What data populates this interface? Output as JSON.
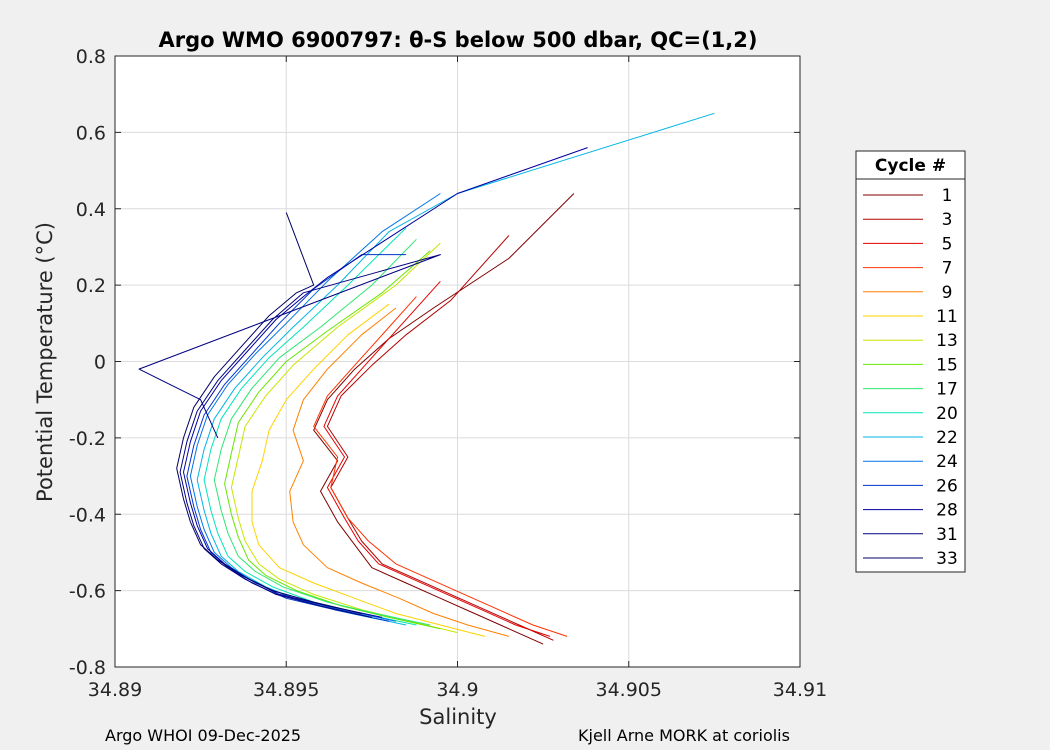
{
  "chart_data": {
    "type": "line",
    "title": "Argo WMO 6900797: θ-S below 500 dbar,  QC=(1,2)",
    "xlabel": "Salinity",
    "ylabel": "Potential Temperature (°C)",
    "xlim": [
      34.89,
      34.91
    ],
    "ylim": [
      -0.8,
      0.8
    ],
    "xticks": [
      34.89,
      34.895,
      34.9,
      34.905,
      34.91
    ],
    "xtick_labels": [
      "34.89",
      "34.895",
      "34.9",
      "34.905",
      "34.91"
    ],
    "yticks": [
      -0.8,
      -0.6,
      -0.4,
      -0.2,
      0,
      0.2,
      0.4,
      0.6,
      0.8
    ],
    "ytick_labels": [
      "-0.8",
      "-0.6",
      "-0.4",
      "-0.2",
      "0",
      "0.2",
      "0.4",
      "0.6",
      "0.8"
    ],
    "grid": true,
    "legend": {
      "title": "Cycle #",
      "position": "right"
    },
    "series": [
      {
        "name": "1",
        "color": "#800000",
        "x": [
          34.9025,
          34.9015,
          34.9005,
          34.8995,
          34.8985,
          34.8975,
          34.897,
          34.8965,
          34.896,
          34.8965,
          34.8958,
          34.8962,
          34.897,
          34.898,
          34.8993,
          34.9015,
          34.9034
        ],
        "y": [
          -0.74,
          -0.7,
          -0.66,
          -0.62,
          -0.58,
          -0.54,
          -0.48,
          -0.42,
          -0.34,
          -0.26,
          -0.18,
          -0.1,
          -0.02,
          0.06,
          0.14,
          0.27,
          0.44
        ]
      },
      {
        "name": "3",
        "color": "#b30000",
        "x": [
          34.9028,
          34.9018,
          34.9008,
          34.8998,
          34.8988,
          34.8978,
          34.8972,
          34.8968,
          34.8963,
          34.8968,
          34.8962,
          34.8966,
          34.8975,
          34.8985,
          34.8998,
          34.9015
        ],
        "y": [
          -0.73,
          -0.69,
          -0.65,
          -0.61,
          -0.57,
          -0.53,
          -0.47,
          -0.41,
          -0.33,
          -0.25,
          -0.17,
          -0.09,
          -0.01,
          0.07,
          0.16,
          0.33
        ]
      },
      {
        "name": "5",
        "color": "#e60000",
        "x": [
          34.9027,
          34.9017,
          34.9007,
          34.8997,
          34.8987,
          34.8977,
          34.8971,
          34.8967,
          34.8962,
          34.8967,
          34.8961,
          34.8965,
          34.8973,
          34.8983,
          34.8995
        ],
        "y": [
          -0.72,
          -0.69,
          -0.65,
          -0.61,
          -0.57,
          -0.53,
          -0.47,
          -0.41,
          -0.33,
          -0.25,
          -0.17,
          -0.09,
          -0.01,
          0.09,
          0.21
        ]
      },
      {
        "name": "7",
        "color": "#ff3300",
        "x": [
          34.9032,
          34.9022,
          34.9012,
          34.9002,
          34.8992,
          34.8982,
          34.8974,
          34.8968,
          34.8963,
          34.8965,
          34.8958,
          34.8962,
          34.897,
          34.8979,
          34.8988
        ],
        "y": [
          -0.72,
          -0.69,
          -0.65,
          -0.61,
          -0.57,
          -0.53,
          -0.47,
          -0.41,
          -0.33,
          -0.25,
          -0.17,
          -0.09,
          -0.01,
          0.08,
          0.17
        ]
      },
      {
        "name": "9",
        "color": "#ff8000",
        "x": [
          34.9015,
          34.9003,
          34.8993,
          34.8983,
          34.8972,
          34.8962,
          34.8955,
          34.8952,
          34.8951,
          34.8955,
          34.8952,
          34.8955,
          34.8962,
          34.8972,
          34.8982
        ],
        "y": [
          -0.72,
          -0.69,
          -0.66,
          -0.62,
          -0.58,
          -0.54,
          -0.48,
          -0.42,
          -0.34,
          -0.26,
          -0.18,
          -0.1,
          -0.02,
          0.07,
          0.14
        ]
      },
      {
        "name": "11",
        "color": "#ffd200",
        "x": [
          34.9008,
          34.8995,
          34.8982,
          34.897,
          34.8958,
          34.8948,
          34.8942,
          34.894,
          34.894,
          34.8943,
          34.8945,
          34.895,
          34.8958,
          34.8968,
          34.898
        ],
        "y": [
          -0.72,
          -0.69,
          -0.66,
          -0.62,
          -0.58,
          -0.54,
          -0.48,
          -0.42,
          -0.34,
          -0.26,
          -0.18,
          -0.1,
          -0.02,
          0.07,
          0.15
        ]
      },
      {
        "name": "13",
        "color": "#c8e600",
        "x": [
          34.9,
          34.8986,
          34.8972,
          34.8958,
          34.8948,
          34.8942,
          34.8938,
          34.8936,
          34.8934,
          34.8936,
          34.8938,
          34.8944,
          34.8952,
          34.8965,
          34.8982,
          34.8995
        ],
        "y": [
          -0.71,
          -0.68,
          -0.65,
          -0.61,
          -0.57,
          -0.53,
          -0.47,
          -0.41,
          -0.33,
          -0.25,
          -0.17,
          -0.09,
          -0.01,
          0.09,
          0.2,
          0.31
        ]
      },
      {
        "name": "15",
        "color": "#66e600",
        "x": [
          34.8995,
          34.898,
          34.8966,
          34.8953,
          34.8944,
          34.8939,
          34.8936,
          34.8934,
          34.8932,
          34.8934,
          34.8936,
          34.8942,
          34.895,
          34.8962,
          34.8978,
          34.8992
        ],
        "y": [
          -0.7,
          -0.67,
          -0.64,
          -0.6,
          -0.56,
          -0.52,
          -0.46,
          -0.4,
          -0.32,
          -0.24,
          -0.16,
          -0.08,
          0.0,
          0.08,
          0.18,
          0.29
        ]
      },
      {
        "name": "17",
        "color": "#2ee673",
        "x": [
          34.8992,
          34.8976,
          34.8962,
          34.8949,
          34.8941,
          34.8936,
          34.8933,
          34.8931,
          34.8929,
          34.8931,
          34.8934,
          34.894,
          34.8948,
          34.896,
          34.8975,
          34.8988
        ],
        "y": [
          -0.69,
          -0.66,
          -0.63,
          -0.59,
          -0.55,
          -0.51,
          -0.45,
          -0.39,
          -0.31,
          -0.23,
          -0.15,
          -0.07,
          0.01,
          0.09,
          0.2,
          0.32
        ]
      },
      {
        "name": "20",
        "color": "#00e6b8",
        "x": [
          34.8988,
          34.8972,
          34.8958,
          34.8946,
          34.8938,
          34.8933,
          34.893,
          34.8928,
          34.8926,
          34.8928,
          34.8931,
          34.8937,
          34.8945,
          34.8955,
          34.8968,
          34.8985
        ],
        "y": [
          -0.69,
          -0.66,
          -0.63,
          -0.59,
          -0.55,
          -0.51,
          -0.45,
          -0.39,
          -0.31,
          -0.23,
          -0.15,
          -0.07,
          0.01,
          0.09,
          0.2,
          0.35
        ]
      },
      {
        "name": "22",
        "color": "#00b4e6",
        "x": [
          34.8985,
          34.8969,
          34.8955,
          34.8944,
          34.8936,
          34.8931,
          34.8928,
          34.8926,
          34.8924,
          34.8926,
          34.8929,
          34.8935,
          34.8943,
          34.8952,
          34.8965,
          34.898,
          34.9,
          34.9075
        ],
        "y": [
          -0.69,
          -0.66,
          -0.63,
          -0.59,
          -0.55,
          -0.51,
          -0.45,
          -0.39,
          -0.31,
          -0.23,
          -0.15,
          -0.07,
          0.01,
          0.09,
          0.2,
          0.34,
          0.44,
          0.65
        ]
      },
      {
        "name": "24",
        "color": "#0073e6",
        "x": [
          34.8982,
          34.8966,
          34.8952,
          34.8941,
          34.8934,
          34.8929,
          34.8926,
          34.8924,
          34.8922,
          34.8924,
          34.8927,
          34.8933,
          34.8941,
          34.895,
          34.8962,
          34.8978,
          34.8995
        ],
        "y": [
          -0.68,
          -0.65,
          -0.62,
          -0.58,
          -0.54,
          -0.5,
          -0.44,
          -0.38,
          -0.3,
          -0.22,
          -0.14,
          -0.06,
          0.02,
          0.1,
          0.21,
          0.34,
          0.44
        ]
      },
      {
        "name": "26",
        "color": "#0033cc",
        "x": [
          34.898,
          34.8964,
          34.895,
          34.894,
          34.8933,
          34.8928,
          34.8925,
          34.8923,
          34.8921,
          34.8923,
          34.8926,
          34.8932,
          34.894,
          34.8948,
          34.8958,
          34.8972,
          34.8985
        ],
        "y": [
          -0.68,
          -0.65,
          -0.62,
          -0.58,
          -0.54,
          -0.5,
          -0.44,
          -0.38,
          -0.3,
          -0.22,
          -0.14,
          -0.06,
          0.02,
          0.1,
          0.19,
          0.28,
          0.28
        ]
      },
      {
        "name": "28",
        "color": "#0000a0",
        "x": [
          34.8978,
          34.8962,
          34.8948,
          34.8939,
          34.8932,
          34.8927,
          34.8924,
          34.8922,
          34.892,
          34.8922,
          34.8925,
          34.8931,
          34.8939,
          34.8947,
          34.8955,
          34.8962,
          34.9,
          34.9038
        ],
        "y": [
          -0.67,
          -0.64,
          -0.61,
          -0.57,
          -0.53,
          -0.49,
          -0.43,
          -0.37,
          -0.29,
          -0.21,
          -0.13,
          -0.05,
          0.03,
          0.11,
          0.17,
          0.22,
          0.44,
          0.56
        ]
      },
      {
        "name": "31",
        "color": "#000080",
        "x": [
          34.8975,
          34.896,
          34.8947,
          34.8938,
          34.8931,
          34.8926,
          34.8923,
          34.8921,
          34.8919,
          34.8921,
          34.8924,
          34.893,
          34.8938,
          34.8946,
          34.8955,
          34.8975,
          34.8995,
          34.8907,
          34.8925,
          34.893
        ],
        "y": [
          -0.67,
          -0.64,
          -0.61,
          -0.57,
          -0.53,
          -0.49,
          -0.43,
          -0.37,
          -0.29,
          -0.21,
          -0.13,
          -0.05,
          0.03,
          0.11,
          0.18,
          0.23,
          0.28,
          -0.02,
          -0.1,
          -0.2
        ]
      },
      {
        "name": "33",
        "color": "#000066",
        "x": [
          34.8972,
          34.8958,
          34.8946,
          34.8937,
          34.893,
          34.8925,
          34.8922,
          34.892,
          34.8918,
          34.892,
          34.8923,
          34.8929,
          34.8937,
          34.8945,
          34.8953,
          34.8958,
          34.895
        ],
        "y": [
          -0.66,
          -0.63,
          -0.6,
          -0.56,
          -0.52,
          -0.48,
          -0.42,
          -0.36,
          -0.28,
          -0.2,
          -0.12,
          -0.04,
          0.04,
          0.12,
          0.18,
          0.2,
          0.39
        ]
      }
    ]
  },
  "footer": {
    "left": "Argo WHOI 09-Dec-2025",
    "right": "Kjell Arne MORK at coriolis"
  }
}
